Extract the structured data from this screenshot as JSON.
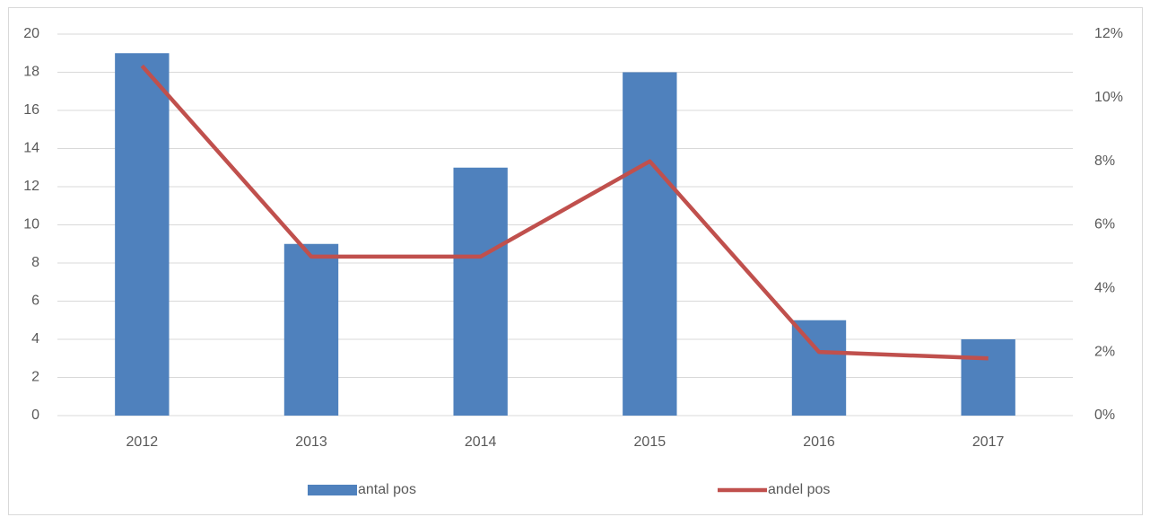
{
  "chart_data": {
    "type": "combo",
    "categories": [
      "2012",
      "2013",
      "2014",
      "2015",
      "2016",
      "2017"
    ],
    "series": [
      {
        "name": "antal pos",
        "type": "bar",
        "color": "#4f81bd",
        "values": [
          19,
          9,
          13,
          18,
          5,
          4
        ]
      },
      {
        "name": "andel pos",
        "type": "line",
        "axis": "y2",
        "color": "#c0504d",
        "values": [
          11,
          5,
          5,
          8,
          2,
          1.8
        ]
      }
    ],
    "ylim": [
      0,
      20
    ],
    "yticks": [
      0,
      2,
      4,
      6,
      8,
      10,
      12,
      14,
      16,
      18,
      20
    ],
    "y2lim": [
      0,
      12
    ],
    "y2ticks": [
      {
        "value": 0,
        "label": "0%"
      },
      {
        "value": 2,
        "label": "2%"
      },
      {
        "value": 4,
        "label": "4%"
      },
      {
        "value": 6,
        "label": "6%"
      },
      {
        "value": 8,
        "label": "8%"
      },
      {
        "value": 10,
        "label": "10%"
      },
      {
        "value": 12,
        "label": "12%"
      }
    ],
    "grid": true,
    "legend": "bottom"
  }
}
